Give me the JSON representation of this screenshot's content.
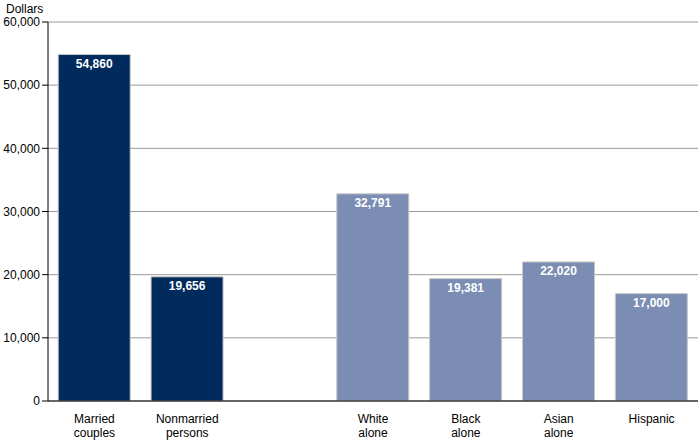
{
  "chart_data": {
    "type": "bar",
    "y_label": "Dollars",
    "categories": [
      "Married couples",
      "Nonmarried persons",
      null,
      "White alone",
      "Black alone",
      "Asian alone",
      "Hispanic"
    ],
    "values": [
      54860,
      19656,
      null,
      32791,
      19381,
      22020,
      17000
    ],
    "value_labels": [
      "54,860",
      "19,656",
      null,
      "32,791",
      "19,381",
      "22,020",
      "17,000"
    ],
    "colors": [
      "#002b5c",
      "#002b5c",
      null,
      "#7b8db3",
      "#7b8db3",
      "#7b8db3",
      "#7b8db3"
    ],
    "ylim": [
      0,
      60000
    ],
    "yticks": [
      0,
      {
        "value": 10000,
        "label": "10,000"
      },
      {
        "value": 20000,
        "label": "20,000"
      },
      {
        "value": 30000,
        "label": "30,000"
      },
      {
        "value": 40000,
        "label": "40,000"
      },
      {
        "value": 50000,
        "label": "50,000"
      },
      {
        "value": 60000,
        "label": "60,000"
      }
    ],
    "grid": true,
    "data_labels": true
  }
}
